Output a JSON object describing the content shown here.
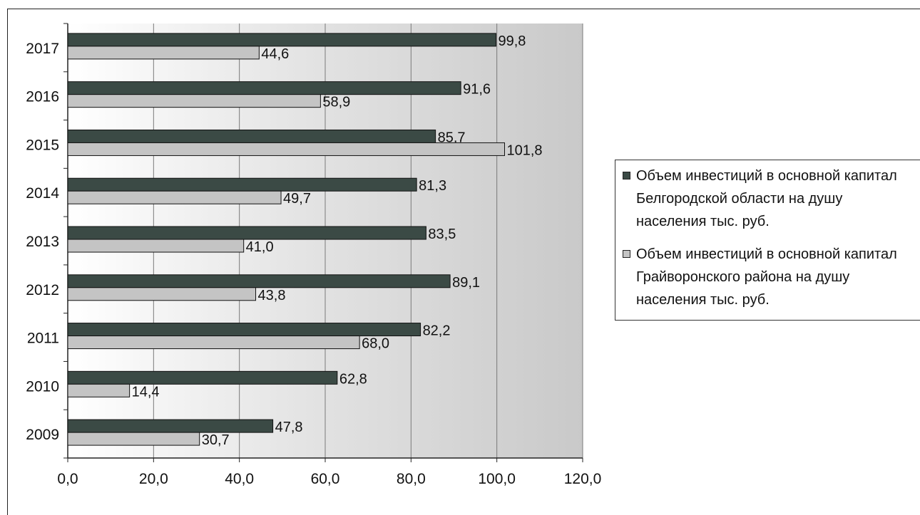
{
  "chart_data": {
    "type": "bar",
    "orientation": "horizontal",
    "categories": [
      "2017",
      "2016",
      "2015",
      "2014",
      "2013",
      "2012",
      "2011",
      "2010",
      "2009"
    ],
    "series": [
      {
        "name": "Объем инвестиций в основной капитал Белгородской области на душу населения тыс. руб.",
        "values": [
          99.8,
          91.6,
          85.7,
          81.3,
          83.5,
          89.1,
          82.2,
          62.8,
          47.8
        ],
        "labels": [
          "99,8",
          "91,6",
          "85,7",
          "81,3",
          "83,5",
          "89,1",
          "82,2",
          "62,8",
          "47,8"
        ],
        "color": "#3b4a45"
      },
      {
        "name": "Объем инвестиций в основной капитал Грайворонского района на душу населения тыс. руб.",
        "values": [
          44.6,
          58.9,
          101.8,
          49.7,
          41.0,
          43.8,
          68.0,
          14.4,
          30.7
        ],
        "labels": [
          "44,6",
          "58,9",
          "101,8",
          "49,7",
          "41,0",
          "43,8",
          "68,0",
          "14,4",
          "30,7"
        ],
        "color": "#c4c4c4"
      }
    ],
    "xlim": [
      0,
      120
    ],
    "xticks": [
      "0,0",
      "20,0",
      "40,0",
      "60,0",
      "80,0",
      "100,0",
      "120,0"
    ],
    "grid": true,
    "legend_position": "right"
  },
  "legend": {
    "item1_line1": "Объем инвестиций в основной капитал",
    "item1_line2": "Белгородской области на душу",
    "item1_line3": "населения тыс. руб.",
    "item2_line1": "Объем инвестиций в основной капитал",
    "item2_line2": "Грайворонского района на душу",
    "item2_line3": "населения тыс. руб."
  }
}
